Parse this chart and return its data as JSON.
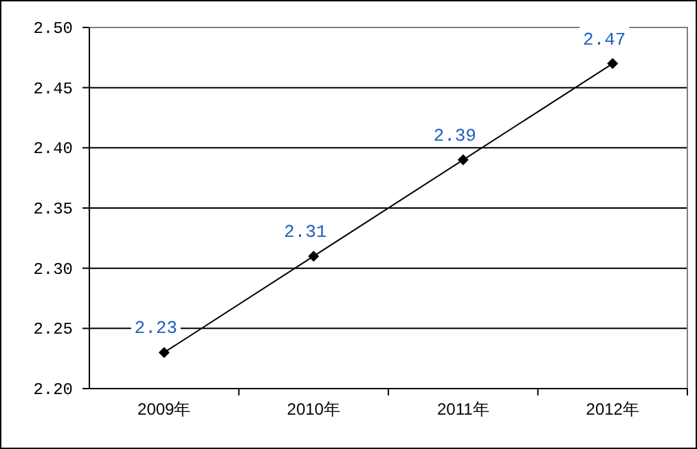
{
  "chart_data": {
    "type": "line",
    "categories": [
      "2009年",
      "2010年",
      "2011年",
      "2012年"
    ],
    "series": [
      {
        "color": "#000000",
        "values": [
          2.23,
          2.31,
          2.39,
          2.47
        ]
      }
    ],
    "ylim": [
      2.2,
      2.5
    ],
    "yticks": [
      {
        "value": 2.2,
        "label": "2.20"
      },
      {
        "value": 2.25,
        "label": "2.25"
      },
      {
        "value": 2.3,
        "label": "2.30"
      },
      {
        "value": 2.35,
        "label": "2.35"
      },
      {
        "value": 2.4,
        "label": "2.40"
      },
      {
        "value": 2.45,
        "label": "2.45"
      },
      {
        "value": 2.5,
        "label": "2.50"
      }
    ],
    "grid": "y",
    "marker": "diamond",
    "line_style": "solid",
    "data_labels": true
  }
}
